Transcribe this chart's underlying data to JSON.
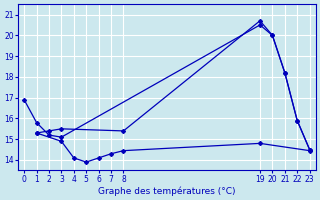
{
  "title": "Graphe des températures (°C)",
  "background_color": "#cce8ee",
  "grid_color": "#ffffff",
  "line_color": "#0000bb",
  "xlim": [
    -0.5,
    23.5
  ],
  "ylim": [
    13.5,
    21.5
  ],
  "yticks": [
    14,
    15,
    16,
    17,
    18,
    19,
    20,
    21
  ],
  "xticks": [
    0,
    1,
    2,
    3,
    4,
    5,
    6,
    7,
    8,
    19,
    20,
    21,
    22,
    23
  ],
  "line1_x": [
    0,
    1,
    2,
    3,
    19,
    20,
    21,
    22,
    23
  ],
  "line1_y": [
    16.9,
    15.8,
    15.2,
    15.1,
    20.5,
    20.0,
    18.2,
    15.9,
    14.5
  ],
  "line2_x": [
    1,
    2,
    3,
    8,
    19,
    20,
    21,
    22,
    23
  ],
  "line2_y": [
    15.3,
    15.4,
    15.5,
    15.4,
    20.7,
    20.0,
    18.2,
    15.9,
    14.5
  ],
  "line3_x": [
    1,
    3,
    4,
    5,
    6,
    7,
    8,
    19,
    23
  ],
  "line3_y": [
    15.3,
    14.9,
    14.1,
    13.9,
    14.1,
    14.3,
    14.45,
    14.8,
    14.45
  ]
}
